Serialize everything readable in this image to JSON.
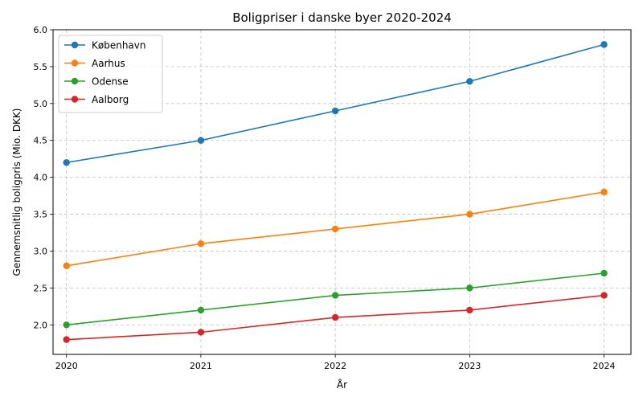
{
  "chart_data": {
    "type": "line",
    "title": "Boligpriser i danske byer 2020-2024",
    "xlabel": "År",
    "ylabel": "Gennemsnitlig boligpris (Mio. DKK)",
    "x": [
      2020,
      2021,
      2022,
      2023,
      2024
    ],
    "x_tick_labels": [
      "2020",
      "2021",
      "2022",
      "2023",
      "2024"
    ],
    "xlim": [
      2019.9,
      2024.2
    ],
    "ylim": [
      1.6,
      6.0
    ],
    "y_ticks": [
      2.0,
      2.5,
      3.0,
      3.5,
      4.0,
      4.5,
      5.0,
      5.5,
      6.0
    ],
    "y_tick_labels": [
      "2.0",
      "2.5",
      "3.0",
      "3.5",
      "4.0",
      "4.5",
      "5.0",
      "5.5",
      "6.0"
    ],
    "grid": true,
    "legend_position": "top-left",
    "series": [
      {
        "name": "København",
        "color": "#1f77b4",
        "values": [
          4.2,
          4.5,
          4.9,
          5.3,
          5.8
        ]
      },
      {
        "name": "Aarhus",
        "color": "#ff7f0e",
        "values": [
          2.8,
          3.1,
          3.3,
          3.5,
          3.8
        ]
      },
      {
        "name": "Odense",
        "color": "#2ca02c",
        "values": [
          2.0,
          2.2,
          2.4,
          2.5,
          2.7
        ]
      },
      {
        "name": "Aalborg",
        "color": "#d62728",
        "values": [
          1.8,
          1.9,
          2.1,
          2.2,
          2.4
        ]
      }
    ]
  }
}
